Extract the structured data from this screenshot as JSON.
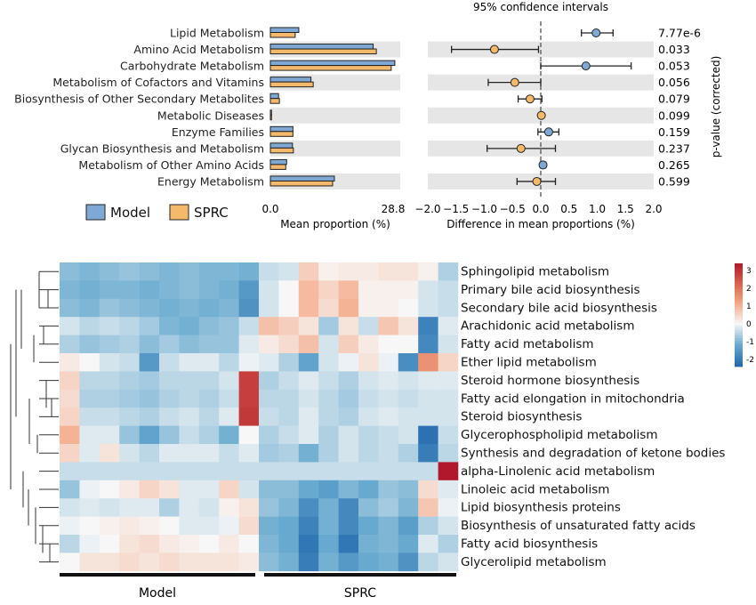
{
  "chart_data": [
    {
      "type": "bar",
      "categories": [
        "Lipid Metabolism",
        "Amino Acid Metabolism",
        "Carbohydrate Metabolism",
        "Metabolism of Cofactors and Vitamins",
        "Biosynthesis of Other Secondary Metabolites",
        "Metabolic Diseases",
        "Enzyme Families",
        "Glycan Biosynthesis and Metabolism",
        "Metabolism of Other Amino Acids",
        "Energy Metabolism"
      ],
      "series": [
        {
          "name": "Model",
          "values": [
            6.3,
            22.8,
            27.6,
            9.0,
            1.8,
            0.25,
            5.0,
            4.9,
            3.6,
            14.2
          ],
          "color": "#7fa9d4"
        },
        {
          "name": "SPRC",
          "values": [
            5.5,
            23.5,
            26.8,
            9.5,
            2.0,
            0.25,
            5.0,
            5.1,
            3.4,
            13.8
          ],
          "color": "#f5b96b"
        }
      ],
      "xlabel": "Mean proportion (%)",
      "xlim": [
        0,
        28.8
      ],
      "ticks": [
        "0.0",
        "28.8"
      ],
      "legend": {
        "position": "bottom-left"
      }
    },
    {
      "type": "scatter",
      "title": "95% confidence intervals",
      "xlabel": "Difference in mean proportions (%)",
      "ylabel": "p-value (corrected)",
      "xlim": [
        -2.0,
        2.0
      ],
      "ticks": [
        "−2.0",
        "−1.5",
        "−1.0",
        "−0.5",
        "0.0",
        "0.5",
        "1.0",
        "1.5",
        "2.0"
      ],
      "points": [
        {
          "diff": 0.98,
          "ci": [
            0.72,
            1.28
          ],
          "group": "Model",
          "p": "7.77e-6"
        },
        {
          "diff": -0.82,
          "ci": [
            -1.58,
            -0.04
          ],
          "group": "SPRC",
          "p": "0.033"
        },
        {
          "diff": 0.8,
          "ci": [
            0.0,
            1.6
          ],
          "group": "Model",
          "p": "0.053"
        },
        {
          "diff": -0.46,
          "ci": [
            -0.93,
            0.0
          ],
          "group": "SPRC",
          "p": "0.056"
        },
        {
          "diff": -0.19,
          "ci": [
            -0.4,
            0.02
          ],
          "group": "SPRC",
          "p": "0.079"
        },
        {
          "diff": 0.01,
          "ci": [
            -0.02,
            0.03
          ],
          "group": "SPRC",
          "p": "0.099"
        },
        {
          "diff": 0.14,
          "ci": [
            -0.05,
            0.32
          ],
          "group": "Model",
          "p": "0.159"
        },
        {
          "diff": -0.35,
          "ci": [
            -0.95,
            0.26
          ],
          "group": "SPRC",
          "p": "0.237"
        },
        {
          "diff": 0.04,
          "ci": [
            -0.01,
            0.09
          ],
          "group": "Model",
          "p": "0.265"
        },
        {
          "diff": -0.07,
          "ci": [
            -0.42,
            0.26
          ],
          "group": "SPRC",
          "p": "0.599"
        }
      ],
      "colors": {
        "Model": "#7fa9d4",
        "SPRC": "#f5b96b"
      }
    },
    {
      "type": "heatmap",
      "rows": [
        "Sphingolipid metabolism",
        "Primary bile acid biosynthesis",
        "Secondary bile acid biosynthesis",
        "Arachidonic acid metabolism",
        "Fatty acid metabolism",
        "Ether lipid metabolism",
        "Steroid hormone biosynthesis",
        "Fatty acid elongation in mitochondria",
        "Steroid biosynthesis",
        "Glycerophospholipid metabolism",
        "Synthesis and degradation of ketone bodies",
        "alpha-Linolenic acid metabolism",
        "Linoleic acid metabolism",
        "Lipid biosynthesis proteins",
        "Biosynthesis of unsaturated fatty acids",
        "Fatty acid biosynthesis",
        "Glycerolipid metabolism"
      ],
      "groups": [
        {
          "name": "Model",
          "columns": 10
        },
        {
          "name": "SPRC",
          "columns": 10
        }
      ],
      "colorbar": {
        "ticks": [
          "3",
          "2",
          "1",
          "0",
          "-1",
          "-2"
        ],
        "range": [
          -2.4,
          3.4
        ]
      },
      "values": [
        [
          -0.9,
          -1.0,
          -0.9,
          -0.8,
          -0.9,
          -1.0,
          -0.9,
          -1.0,
          -1.0,
          -1.1,
          -0.4,
          -0.3,
          0.6,
          0.1,
          0.2,
          0.2,
          0.3,
          0.3,
          0.1,
          -0.6
        ],
        [
          -1.0,
          -1.1,
          -1.0,
          -1.0,
          -1.1,
          -1.0,
          -0.9,
          -1.0,
          -1.1,
          -1.5,
          -0.3,
          0.0,
          0.9,
          0.5,
          0.9,
          0.1,
          0.1,
          0.1,
          -0.3,
          -0.4
        ],
        [
          -0.9,
          -1.0,
          -0.8,
          -0.9,
          -1.0,
          -1.1,
          -1.0,
          -1.1,
          -1.0,
          -1.6,
          -0.3,
          0.0,
          0.9,
          0.4,
          1.0,
          0.1,
          0.1,
          0.0,
          -0.3,
          -0.4
        ],
        [
          -0.3,
          -0.5,
          -0.4,
          -0.5,
          -0.7,
          -1.0,
          -1.1,
          -0.9,
          -0.8,
          -0.4,
          0.8,
          0.6,
          0.3,
          -0.7,
          0.3,
          -0.4,
          0.7,
          0.3,
          -1.9,
          -0.2
        ],
        [
          -0.6,
          -0.8,
          -0.7,
          -0.6,
          -0.9,
          -0.7,
          -0.9,
          -0.8,
          -0.8,
          -0.2,
          0.2,
          0.4,
          0.8,
          -0.3,
          0.6,
          0.2,
          0.0,
          0.0,
          -1.8,
          -0.3
        ],
        [
          0.2,
          0.0,
          -0.3,
          -0.4,
          -1.5,
          -0.4,
          -0.2,
          -0.2,
          -0.5,
          -0.1,
          -0.2,
          -0.6,
          -1.3,
          -0.3,
          -0.1,
          0.3,
          -0.1,
          -1.7,
          1.5,
          0.5
        ],
        [
          0.5,
          -0.5,
          -0.5,
          -0.6,
          -0.7,
          -0.5,
          -0.5,
          -0.5,
          -0.3,
          2.8,
          -0.6,
          -0.4,
          -0.2,
          -0.4,
          -0.6,
          -0.3,
          -0.2,
          -0.3,
          -0.2,
          -0.2
        ],
        [
          0.4,
          -0.6,
          -0.6,
          -0.7,
          -0.8,
          -0.6,
          -0.5,
          -0.6,
          -0.4,
          2.8,
          -0.5,
          -0.5,
          -0.3,
          -0.5,
          -0.7,
          -0.4,
          -0.3,
          -0.4,
          -0.3,
          -0.3
        ],
        [
          0.5,
          -0.4,
          -0.4,
          -0.5,
          -0.6,
          -0.4,
          -0.3,
          -0.5,
          -0.2,
          2.9,
          -0.4,
          -0.5,
          -0.2,
          -0.5,
          -0.6,
          -0.3,
          -0.2,
          -0.3,
          -0.3,
          -0.3
        ],
        [
          1.0,
          -0.2,
          -0.2,
          -0.8,
          -1.3,
          -0.8,
          -0.4,
          -0.6,
          -1.1,
          0.0,
          -0.6,
          -0.4,
          -0.2,
          -0.6,
          -0.3,
          -0.5,
          -0.4,
          -0.3,
          -2.2,
          -0.4
        ],
        [
          0.5,
          -0.2,
          0.3,
          -0.3,
          -0.5,
          -0.2,
          -0.2,
          -0.2,
          -0.4,
          -0.2,
          -0.7,
          -0.6,
          -1.1,
          -0.6,
          -0.3,
          -0.5,
          -0.4,
          -0.6,
          -2.0,
          -0.5
        ],
        [
          -0.4,
          -0.4,
          -0.4,
          -0.4,
          -0.4,
          -0.4,
          -0.4,
          -0.4,
          -0.4,
          -0.4,
          -0.4,
          -0.4,
          -0.4,
          -0.4,
          -0.4,
          -0.4,
          -0.4,
          -0.4,
          -0.4,
          3.4
        ],
        [
          -0.8,
          -0.1,
          0.0,
          0.2,
          0.5,
          0.3,
          -0.2,
          -0.2,
          0.5,
          -0.3,
          -0.9,
          -0.9,
          -1.2,
          -1.4,
          -1.0,
          -1.2,
          -0.8,
          -0.9,
          0.4,
          -0.2
        ],
        [
          -0.3,
          -0.2,
          -0.3,
          -0.2,
          -0.2,
          -0.6,
          -0.2,
          -0.3,
          0.1,
          0.3,
          -0.8,
          -1.0,
          -1.7,
          -1.1,
          -1.8,
          -0.9,
          -0.7,
          -1.0,
          0.7,
          -0.1
        ],
        [
          -0.1,
          0.0,
          0.1,
          0.2,
          0.1,
          0.0,
          -0.2,
          -0.2,
          -0.1,
          0.4,
          -1.1,
          -1.2,
          -1.9,
          -1.1,
          -1.8,
          -1.2,
          -1.0,
          -1.4,
          -0.6,
          -0.3
        ],
        [
          -0.5,
          -0.1,
          0.0,
          0.3,
          0.4,
          0.2,
          0.1,
          0.0,
          0.2,
          0.0,
          -1.0,
          -1.2,
          -2.1,
          -1.2,
          -2.1,
          -1.1,
          -1.0,
          -1.2,
          -0.2,
          -0.6
        ],
        [
          0.0,
          0.3,
          0.3,
          0.4,
          0.3,
          0.4,
          0.3,
          0.3,
          0.3,
          0.2,
          -0.9,
          -1.1,
          -2.0,
          -1.1,
          -1.5,
          -1.2,
          -1.1,
          -1.6,
          -0.5,
          -0.3
        ]
      ]
    }
  ]
}
